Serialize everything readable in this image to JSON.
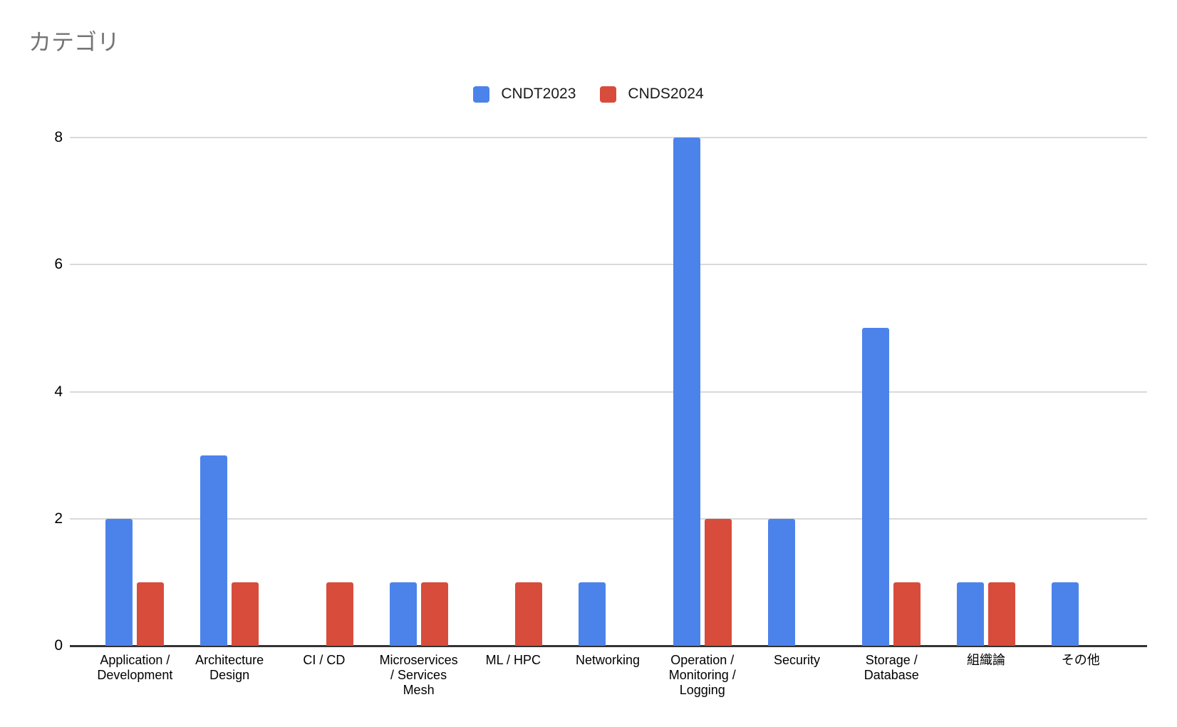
{
  "chart_data": {
    "type": "bar",
    "title": "カテゴリ",
    "categories": [
      "Application / Development",
      "Architecture Design",
      "CI / CD",
      "Microservices / Services Mesh",
      "ML / HPC",
      "Networking",
      "Operation / Monitoring / Logging",
      "Security",
      "Storage / Database",
      "組織論",
      "その他"
    ],
    "category_label_lines": [
      [
        "Application /",
        "Development"
      ],
      [
        "Architecture",
        "Design"
      ],
      [
        "CI / CD"
      ],
      [
        "Microservices",
        "/ Services",
        "Mesh"
      ],
      [
        "ML / HPC"
      ],
      [
        "Networking"
      ],
      [
        "Operation /",
        "Monitoring /",
        "Logging"
      ],
      [
        "Security"
      ],
      [
        "Storage /",
        "Database"
      ],
      [
        "組織論"
      ],
      [
        "その他"
      ]
    ],
    "series": [
      {
        "name": "CNDT2023",
        "color": "#4c83ea",
        "values": [
          2,
          3,
          0,
          1,
          0,
          1,
          8,
          2,
          5,
          1,
          1
        ]
      },
      {
        "name": "CNDS2024",
        "color": "#d84c3c",
        "values": [
          1,
          1,
          1,
          1,
          1,
          0,
          2,
          0,
          1,
          1,
          0
        ]
      }
    ],
    "xlabel": "",
    "ylabel": "",
    "ylim": [
      0,
      8
    ],
    "yticks": [
      0,
      2,
      4,
      6,
      8
    ],
    "grid": true,
    "legend_position": "top"
  },
  "colors": {
    "background": "#ffffff",
    "title_text": "#757575",
    "axis_line": "#333333",
    "gridline": "#d9d9d9",
    "tick_text": "#000000",
    "legend_text": "#1a1a1a"
  }
}
